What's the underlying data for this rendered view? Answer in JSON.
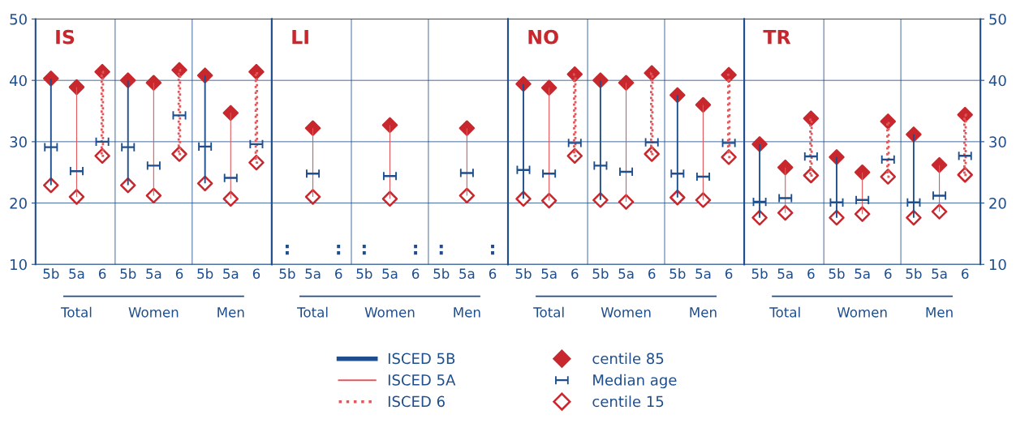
{
  "chart_data": [
    {
      "type": "bar",
      "title": "IS",
      "categories": [
        "5b",
        "5a",
        "6",
        "5b",
        "5a",
        "6",
        "5b",
        "5a",
        "6"
      ],
      "annotations": [
        "Total",
        "Women",
        "Men"
      ],
      "ylim": [
        10,
        50
      ],
      "yticks": [
        10,
        20,
        30,
        40,
        50
      ],
      "grid": "y",
      "legend": "bottom",
      "series": [
        {
          "name": "ISCED 5B",
          "color": "#1f4e8c",
          "base": [
            22.9,
            null,
            null,
            22.9,
            null,
            null,
            23.2,
            null,
            null
          ],
          "values": [
            17.4,
            null,
            null,
            17.1,
            null,
            null,
            17.6,
            null,
            null
          ]
        },
        {
          "name": "ISCED 5A",
          "color": "#e2575b",
          "base": [
            null,
            21.0,
            null,
            null,
            21.2,
            null,
            null,
            20.7,
            null
          ],
          "values": [
            null,
            17.9,
            null,
            null,
            18.4,
            null,
            null,
            14.0,
            null
          ]
        },
        {
          "name": "ISCED 6",
          "color": "#e2575b",
          "line_style": "dotted",
          "base": [
            null,
            null,
            27.7,
            null,
            null,
            28.0,
            null,
            null,
            26.6
          ],
          "values": [
            null,
            null,
            13.7,
            null,
            null,
            13.7,
            null,
            null,
            14.8
          ]
        },
        {
          "name": "centile 85",
          "type": "scatter",
          "marker": "diamond",
          "color": "#c8282d",
          "values": [
            40.3,
            38.9,
            41.4,
            40.0,
            39.6,
            41.7,
            40.8,
            34.7,
            41.4
          ]
        },
        {
          "name": "Median age",
          "type": "scatter",
          "color": "#1f4e8c",
          "values": [
            29.1,
            25.2,
            30.0,
            29.1,
            26.1,
            34.3,
            29.2,
            24.1,
            29.6
          ]
        },
        {
          "name": "centile 15",
          "type": "scatter",
          "marker": "diamond",
          "color": "#c8282d",
          "values": [
            22.9,
            21.0,
            27.7,
            22.9,
            21.2,
            28.0,
            23.2,
            20.7,
            26.6
          ]
        }
      ]
    },
    {
      "type": "bar",
      "title": "LI",
      "categories": [
        "5b",
        "5a",
        "6",
        "5b",
        "5a",
        "6",
        "5b",
        "5a",
        "6"
      ],
      "annotations": [
        "Total",
        "Women",
        "Men"
      ],
      "ylim": [
        10,
        50
      ],
      "yticks": [
        10,
        20,
        30,
        40,
        50
      ],
      "grid": "y",
      "tick_labels": "x",
      "series": [
        {
          "color": "#1f4e8c",
          "base": [
            null,
            null,
            null,
            null,
            null,
            null,
            null,
            null,
            null
          ],
          "values": [
            null,
            null,
            null,
            null,
            null,
            null,
            null,
            null,
            null
          ],
          "value_labels": [
            ":",
            null,
            null,
            ":",
            null,
            null,
            ":",
            null,
            null
          ]
        },
        {
          "color": "#e2575b",
          "base": [
            null,
            21.0,
            null,
            null,
            20.7,
            null,
            null,
            21.2,
            null
          ],
          "values": [
            null,
            11.2,
            null,
            null,
            12.0,
            null,
            null,
            11.0,
            null
          ]
        },
        {
          "color": "#c8282d",
          "line_style": "dotted",
          "base": [
            null,
            null,
            null,
            null,
            null,
            null,
            null,
            null,
            null
          ],
          "values": [
            null,
            null,
            null,
            null,
            null,
            null,
            null,
            null,
            null
          ],
          "value_labels": [
            null,
            null,
            ":",
            null,
            null,
            ":",
            null,
            null,
            ":"
          ]
        },
        {
          "type": "scatter",
          "marker": "diamond",
          "color": "#c8282d",
          "values": [
            null,
            32.2,
            null,
            null,
            32.7,
            null,
            null,
            32.2,
            null
          ]
        },
        {
          "type": "scatter",
          "color": "#1f4e8c",
          "values": [
            null,
            24.8,
            null,
            null,
            24.4,
            null,
            null,
            24.9,
            null
          ]
        },
        {
          "type": "scatter",
          "marker": "diamond",
          "color": "#c8282d",
          "values": [
            null,
            21.0,
            null,
            null,
            20.7,
            null,
            null,
            21.2,
            null
          ]
        }
      ]
    },
    {
      "type": "bar",
      "title": "NO",
      "categories": [
        "5b",
        "5a",
        "6",
        "5b",
        "5a",
        "6",
        "5b",
        "5a",
        "6"
      ],
      "annotations": [
        "Total",
        "Women",
        "Men"
      ],
      "ylim": [
        10,
        50
      ],
      "yticks": [
        10,
        20,
        30,
        40,
        50
      ],
      "grid": "y",
      "tick_labels": "x",
      "series": [
        {
          "color": "#1f4e8c",
          "base": [
            20.7,
            null,
            null,
            20.5,
            null,
            null,
            20.9,
            null,
            null
          ],
          "values": [
            18.7,
            null,
            null,
            19.5,
            null,
            null,
            16.7,
            null,
            null
          ]
        },
        {
          "color": "#e2575b",
          "base": [
            null,
            20.4,
            null,
            null,
            20.2,
            null,
            null,
            20.5,
            null
          ],
          "values": [
            null,
            18.4,
            null,
            null,
            19.4,
            null,
            null,
            15.5,
            null
          ]
        },
        {
          "color": "#e2575b",
          "line_style": "dotted",
          "base": [
            null,
            null,
            27.7,
            null,
            null,
            28.0,
            null,
            null,
            27.5
          ],
          "values": [
            null,
            null,
            13.3,
            null,
            null,
            13.2,
            null,
            null,
            13.4
          ]
        },
        {
          "type": "scatter",
          "marker": "diamond",
          "color": "#c8282d",
          "values": [
            39.4,
            38.8,
            41.0,
            40.0,
            39.6,
            41.2,
            37.6,
            36.0,
            40.9
          ]
        },
        {
          "type": "scatter",
          "color": "#1f4e8c",
          "values": [
            25.4,
            24.8,
            29.8,
            26.1,
            25.1,
            29.9,
            24.8,
            24.3,
            29.8
          ]
        },
        {
          "type": "scatter",
          "marker": "diamond",
          "color": "#c8282d",
          "values": [
            20.7,
            20.4,
            27.7,
            20.5,
            20.2,
            28.0,
            20.9,
            20.5,
            27.5
          ]
        }
      ]
    },
    {
      "type": "bar",
      "title": "TR",
      "categories": [
        "5b",
        "5a",
        "6",
        "5b",
        "5a",
        "6",
        "5b",
        "5a",
        "6"
      ],
      "annotations": [
        "Total",
        "Women",
        "Men"
      ],
      "ylim": [
        10,
        50
      ],
      "yticks": [
        10,
        20,
        30,
        40,
        50
      ],
      "grid": "y",
      "series": [
        {
          "color": "#1f4e8c",
          "base": [
            17.6,
            null,
            null,
            17.6,
            null,
            null,
            17.6,
            null,
            null
          ],
          "values": [
            12.0,
            null,
            null,
            9.9,
            null,
            null,
            13.6,
            null,
            null
          ]
        },
        {
          "color": "#e2575b",
          "base": [
            null,
            18.4,
            null,
            null,
            18.2,
            null,
            null,
            18.6,
            null
          ],
          "values": [
            null,
            7.4,
            null,
            null,
            6.8,
            null,
            null,
            7.6,
            null
          ]
        },
        {
          "color": "#e2575b",
          "line_style": "dotted",
          "base": [
            null,
            null,
            24.5,
            null,
            null,
            24.3,
            null,
            null,
            24.6
          ],
          "values": [
            null,
            null,
            9.3,
            null,
            null,
            9.0,
            null,
            null,
            9.8
          ]
        },
        {
          "type": "scatter",
          "marker": "diamond",
          "color": "#c8282d",
          "values": [
            29.6,
            25.8,
            33.8,
            27.5,
            25.0,
            33.3,
            31.2,
            26.2,
            34.4
          ]
        },
        {
          "type": "scatter",
          "color": "#1f4e8c",
          "values": [
            20.2,
            20.8,
            27.6,
            20.1,
            20.5,
            27.1,
            20.1,
            21.2,
            27.7
          ]
        },
        {
          "type": "scatter",
          "marker": "diamond",
          "color": "#c8282d",
          "values": [
            17.6,
            18.4,
            24.5,
            17.6,
            18.2,
            24.3,
            17.6,
            18.6,
            24.6
          ]
        }
      ]
    }
  ]
}
